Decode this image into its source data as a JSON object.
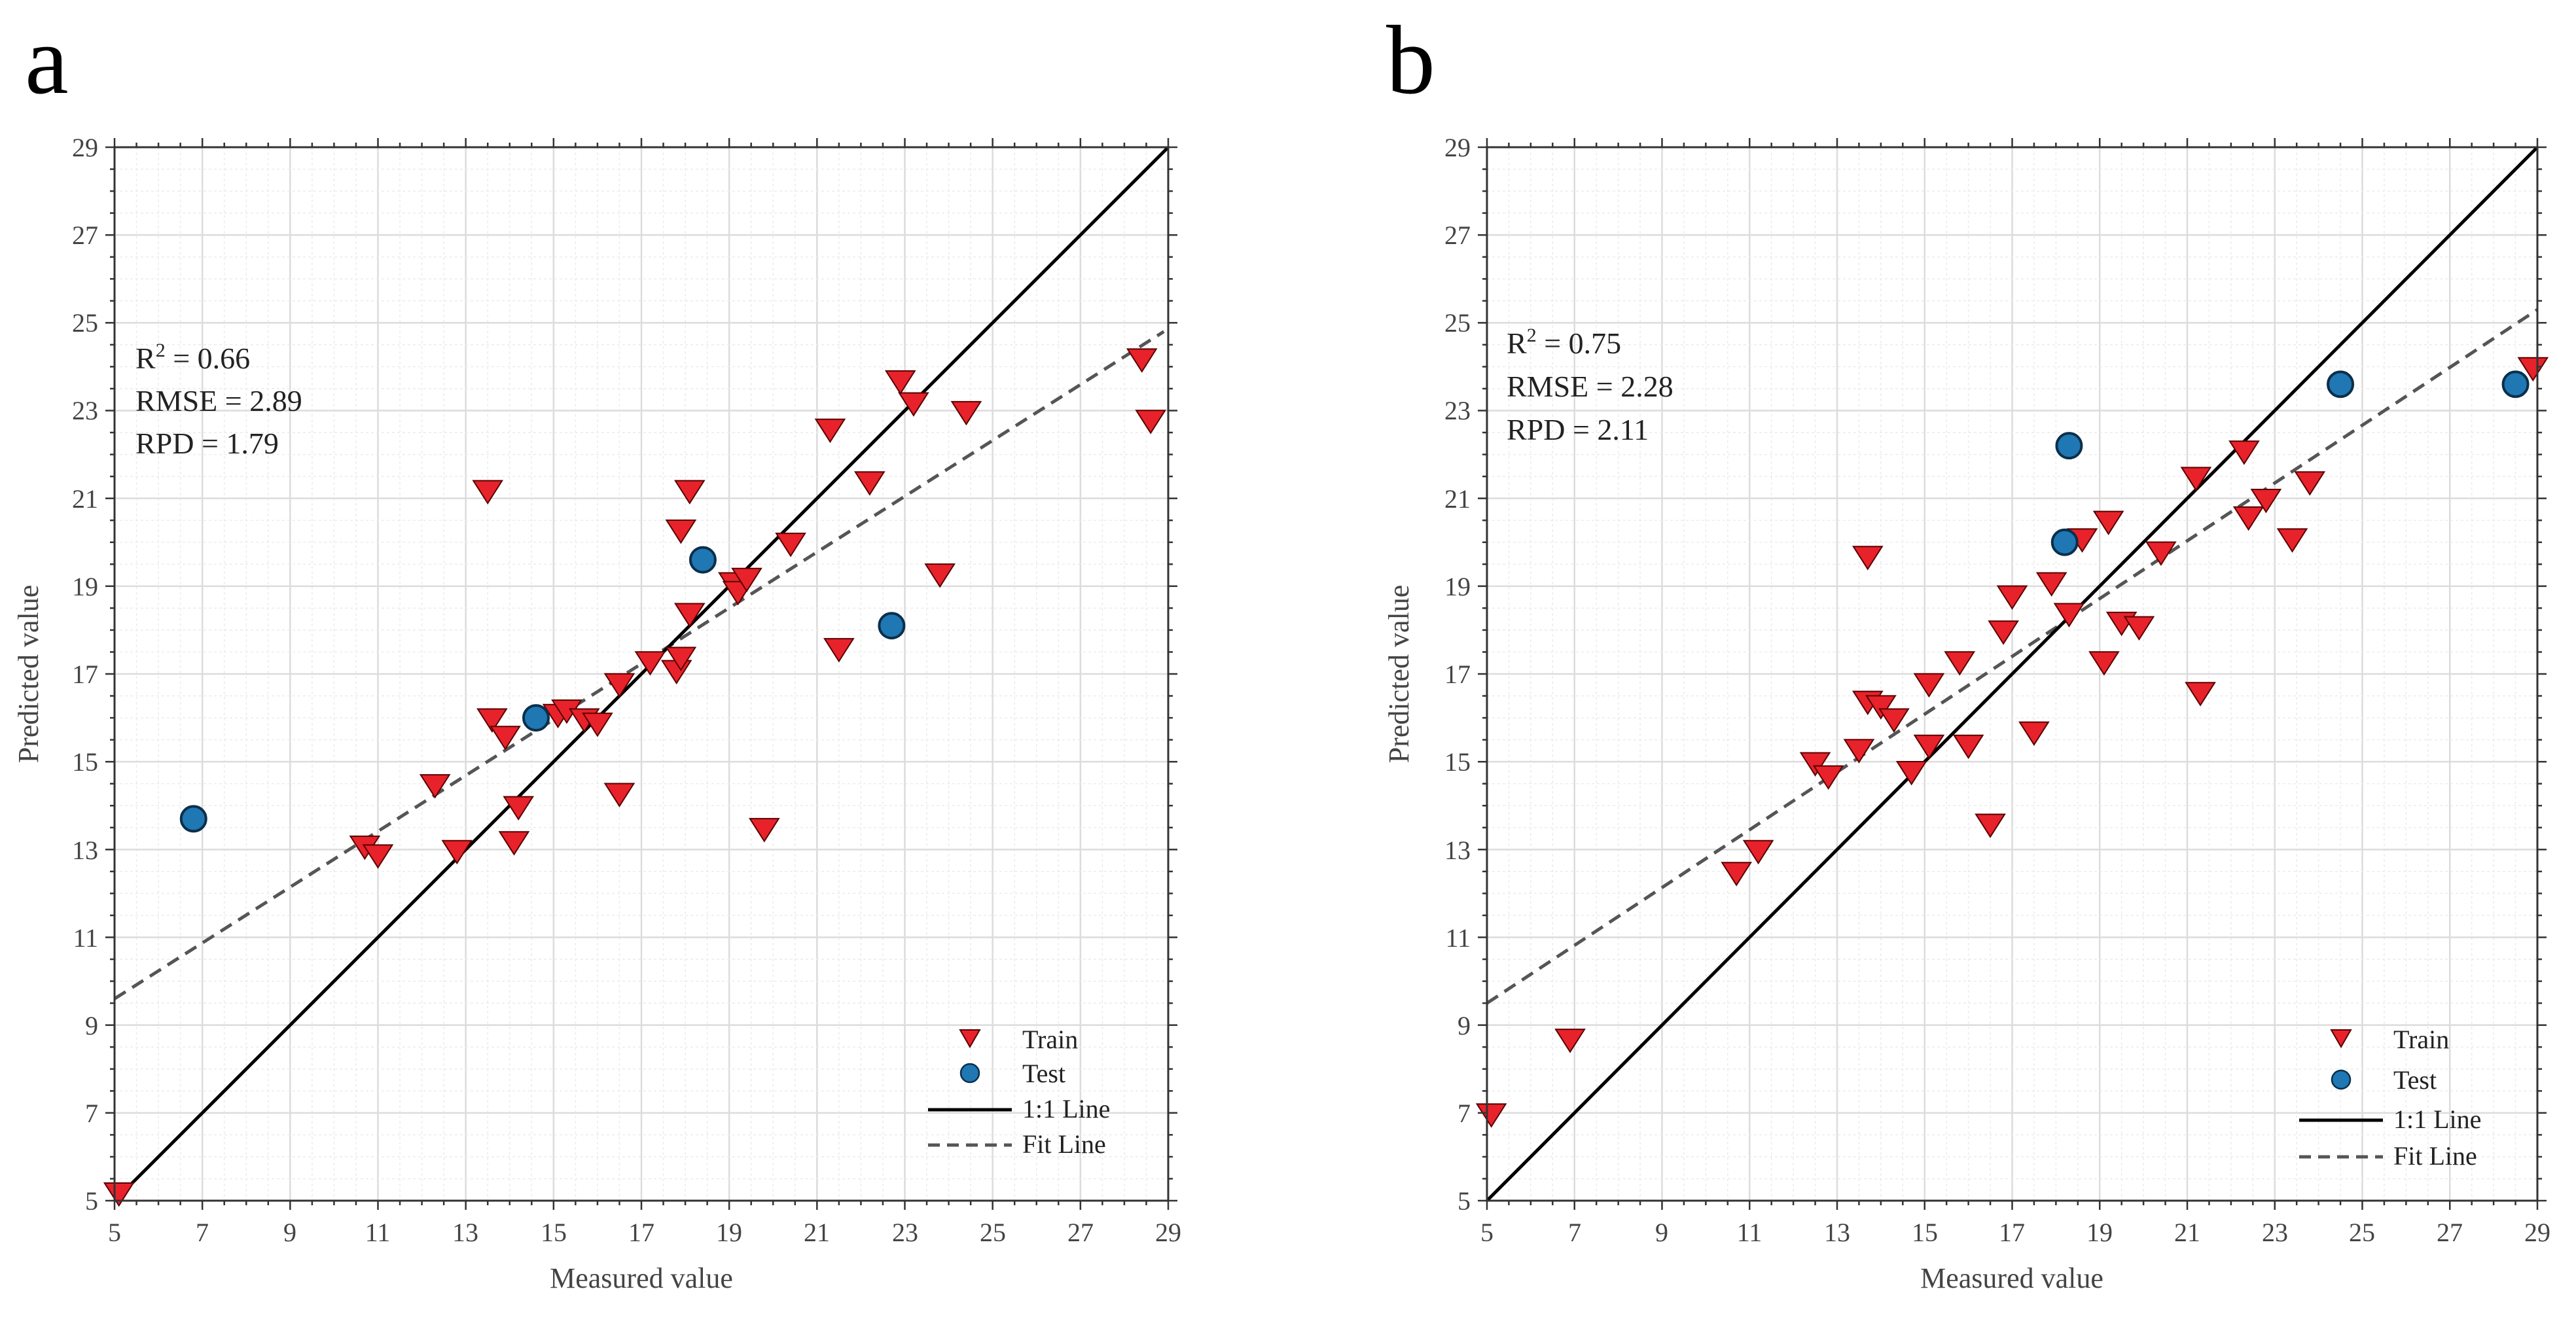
{
  "colors": {
    "train": "#e8222a",
    "test": "#1f77b4",
    "one_to_one": "#000000",
    "fit": "#555555",
    "grid_major": "#dcdcdc",
    "grid_minor": "#ececec"
  },
  "chart_data": [
    {
      "type": "scatter",
      "panel_label": "a",
      "xlabel": "Measured value",
      "ylabel": "Predicted value",
      "xlim": [
        5,
        29
      ],
      "ylim": [
        5,
        29
      ],
      "ticks": [
        "5",
        "7",
        "9",
        "11",
        "13",
        "15",
        "17",
        "19",
        "21",
        "23",
        "25",
        "27",
        "29"
      ],
      "tick_values": [
        5,
        7,
        9,
        11,
        13,
        15,
        17,
        19,
        21,
        23,
        25,
        27,
        29
      ],
      "stats": {
        "r2_prefix": "R",
        "r2_sup": "2",
        "r2_value": " = 0.66",
        "rmse": "RMSE = 2.89",
        "rpd": "RPD = 1.79"
      },
      "legend": {
        "train": "Train",
        "test": "Test",
        "one_to_one": "1:1 Line",
        "fit": "Fit Line"
      },
      "fit_line": {
        "x": [
          5,
          28.9
        ],
        "y": [
          9.6,
          24.8
        ]
      },
      "one_to_one": {
        "x": [
          5,
          29
        ],
        "y": [
          5,
          29
        ]
      },
      "series": [
        {
          "name": "Train",
          "marker": "triangle-down",
          "points": [
            [
              5.1,
              5.2
            ],
            [
              10.7,
              13.1
            ],
            [
              11.0,
              12.9
            ],
            [
              12.3,
              14.5
            ],
            [
              12.8,
              13.0
            ],
            [
              13.5,
              21.2
            ],
            [
              13.6,
              16.0
            ],
            [
              13.9,
              15.6
            ],
            [
              14.1,
              13.2
            ],
            [
              14.2,
              14.0
            ],
            [
              15.1,
              16.1
            ],
            [
              15.3,
              16.2
            ],
            [
              15.7,
              16.0
            ],
            [
              16.0,
              15.9
            ],
            [
              16.5,
              14.3
            ],
            [
              16.5,
              16.8
            ],
            [
              17.2,
              17.3
            ],
            [
              17.8,
              17.1
            ],
            [
              17.9,
              17.4
            ],
            [
              17.9,
              20.3
            ],
            [
              18.1,
              21.2
            ],
            [
              18.1,
              18.4
            ],
            [
              19.1,
              19.1
            ],
            [
              19.2,
              18.9
            ],
            [
              19.4,
              19.2
            ],
            [
              19.8,
              13.5
            ],
            [
              20.4,
              20.0
            ],
            [
              21.3,
              22.6
            ],
            [
              21.5,
              17.6
            ],
            [
              22.2,
              21.4
            ],
            [
              22.9,
              23.7
            ],
            [
              23.2,
              23.2
            ],
            [
              23.8,
              19.3
            ],
            [
              24.4,
              23.0
            ],
            [
              28.4,
              24.2
            ],
            [
              28.6,
              22.8
            ]
          ]
        },
        {
          "name": "Test",
          "marker": "circle",
          "points": [
            [
              6.8,
              13.7
            ],
            [
              14.6,
              16.0
            ],
            [
              18.4,
              19.6
            ],
            [
              22.7,
              18.1
            ]
          ]
        }
      ]
    },
    {
      "type": "scatter",
      "panel_label": "b",
      "xlabel": "Measured value",
      "ylabel": "Predicted value",
      "xlim": [
        5,
        29
      ],
      "ylim": [
        5,
        29
      ],
      "ticks": [
        "5",
        "7",
        "9",
        "11",
        "13",
        "15",
        "17",
        "19",
        "21",
        "23",
        "25",
        "27",
        "29"
      ],
      "tick_values": [
        5,
        7,
        9,
        11,
        13,
        15,
        17,
        19,
        21,
        23,
        25,
        27,
        29
      ],
      "stats": {
        "r2_prefix": "R",
        "r2_sup": "2",
        "r2_value": " = 0.75",
        "rmse": "RMSE = 2.28",
        "rpd": "RPD = 2.11"
      },
      "legend": {
        "train": "Train",
        "test": "Test",
        "one_to_one": "1:1 Line",
        "fit": "Fit Line"
      },
      "fit_line": {
        "x": [
          5,
          29
        ],
        "y": [
          9.5,
          25.3
        ]
      },
      "one_to_one": {
        "x": [
          5,
          29
        ],
        "y": [
          5,
          29
        ]
      },
      "series": [
        {
          "name": "Train",
          "marker": "triangle-down",
          "points": [
            [
              5.1,
              7.0
            ],
            [
              6.9,
              8.7
            ],
            [
              10.7,
              12.5
            ],
            [
              11.2,
              13.0
            ],
            [
              12.5,
              15.0
            ],
            [
              12.8,
              14.7
            ],
            [
              13.5,
              15.3
            ],
            [
              13.7,
              16.4
            ],
            [
              13.7,
              19.7
            ],
            [
              14.0,
              16.3
            ],
            [
              14.3,
              16.0
            ],
            [
              14.7,
              14.8
            ],
            [
              15.1,
              15.4
            ],
            [
              15.1,
              16.8
            ],
            [
              15.8,
              17.3
            ],
            [
              16.0,
              15.4
            ],
            [
              16.5,
              13.6
            ],
            [
              16.8,
              18.0
            ],
            [
              17.0,
              18.8
            ],
            [
              17.5,
              15.7
            ],
            [
              17.9,
              19.1
            ],
            [
              18.3,
              18.4
            ],
            [
              18.6,
              20.1
            ],
            [
              19.1,
              17.3
            ],
            [
              19.2,
              20.5
            ],
            [
              19.5,
              18.2
            ],
            [
              19.9,
              18.1
            ],
            [
              20.4,
              19.8
            ],
            [
              21.2,
              21.5
            ],
            [
              21.3,
              16.6
            ],
            [
              22.3,
              22.1
            ],
            [
              22.4,
              20.6
            ],
            [
              22.8,
              21.0
            ],
            [
              23.4,
              20.1
            ],
            [
              23.8,
              21.4
            ],
            [
              28.9,
              24.0
            ]
          ]
        },
        {
          "name": "Test",
          "marker": "circle",
          "points": [
            [
              18.2,
              20.0
            ],
            [
              18.3,
              22.2
            ],
            [
              24.5,
              23.6
            ],
            [
              28.5,
              23.6
            ]
          ]
        }
      ]
    }
  ]
}
